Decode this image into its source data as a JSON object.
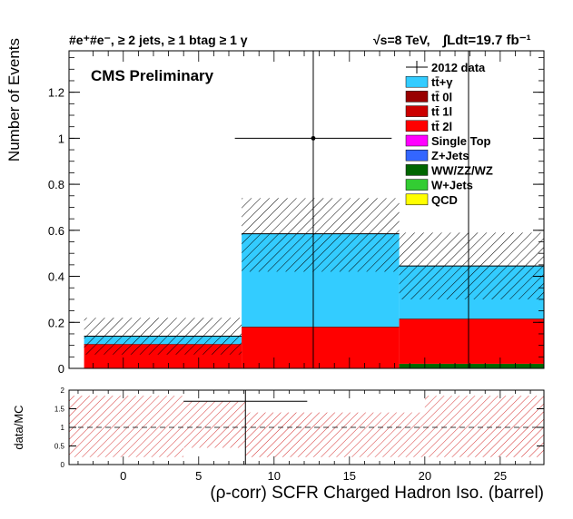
{
  "header": {
    "channel": "#e⁺#e⁻, ≥ 2 jets, ≥ 1 btag ≥ 1 γ",
    "energy": "√s=8 TeV,",
    "lumi": "∫Ldt=19.7 fb⁻¹",
    "experiment": "CMS Preliminary"
  },
  "colors": {
    "ttgamma": "#33ccff",
    "tt0l": "#990000",
    "tt1l": "#cc0000",
    "tt2l": "#ff0000",
    "single_top": "#ff00ff",
    "zjets": "#3366ff",
    "diboson": "#006600",
    "wjets": "#33cc33",
    "qcd": "#ffff00",
    "ratio_band": "#cc0000"
  },
  "chart_data": [
    {
      "type": "bar",
      "stacked": true,
      "ylabel": "Number of Events",
      "xlabel": "",
      "xlim": [
        -3.6,
        27.9
      ],
      "ylim": [
        0,
        1.38
      ],
      "xticks": [],
      "yticks": [
        "0",
        "0.2",
        "0.4",
        "0.6",
        "0.8",
        "1",
        "1.2"
      ],
      "bin_edges": [
        -2.6,
        7.85,
        18.3,
        28.75
      ],
      "series": [
        {
          "name": "tt̄+γ",
          "color": "#33ccff",
          "values": [
            0.035,
            0.405,
            0.23
          ]
        },
        {
          "name": "tt̄ 0l",
          "color": "#990000",
          "values": [
            0,
            0,
            0
          ]
        },
        {
          "name": "tt̄ 1l",
          "color": "#cc0000",
          "values": [
            0,
            0,
            0
          ]
        },
        {
          "name": "tt̄ 2l",
          "color": "#ff0000",
          "values": [
            0.105,
            0.18,
            0.195
          ]
        },
        {
          "name": "Single Top",
          "color": "#ff00ff",
          "values": [
            0,
            0,
            0
          ]
        },
        {
          "name": "Z+Jets",
          "color": "#3366ff",
          "values": [
            0,
            0,
            0
          ]
        },
        {
          "name": "WW/ZZ/WZ",
          "color": "#006600",
          "values": [
            0,
            0,
            0.02
          ]
        },
        {
          "name": "W+Jets",
          "color": "#33cc33",
          "values": [
            0,
            0,
            0
          ]
        },
        {
          "name": "QCD",
          "color": "#ffff00",
          "values": [
            0,
            0,
            0
          ]
        }
      ],
      "uncertainty": {
        "lower": [
          0.06,
          0.42,
          0.3
        ],
        "upper": [
          0.22,
          0.74,
          0.59
        ]
      },
      "data": {
        "name": "2012 data",
        "x": [
          12.6,
          22.9
        ],
        "y": [
          1,
          0
        ],
        "xerr": [
          5.2,
          5.2
        ],
        "yerr_up": [
          1.35,
          1.38
        ],
        "yerr_down": [
          1.0,
          0.0
        ]
      },
      "legend": {
        "position": "top-right",
        "entries": [
          "2012 data",
          "tt̄+γ",
          "tt̄ 0l",
          "tt̄ 1l",
          "tt̄ 2l",
          "Single Top",
          "Z+Jets",
          "WW/ZZ/WZ",
          "W+Jets",
          "QCD"
        ]
      }
    },
    {
      "type": "scatter",
      "ylabel": "data/MC",
      "xlabel": "(ρ-corr) SCFR Charged Hadron Iso. (barrel)",
      "xlim": [
        -3.6,
        27.9
      ],
      "ylim": [
        0,
        2
      ],
      "xticks": [
        "0",
        "5",
        "10",
        "15",
        "20",
        "25"
      ],
      "yticks": [
        "0",
        "0.5",
        "1",
        "1.5",
        "2"
      ],
      "reference_line": 1,
      "ratio_points": {
        "x": [
          8.1
        ],
        "y": [
          1.7
        ],
        "xerr": [
          4.1
        ],
        "yerr_up": [
          0.3
        ],
        "yerr_down": [
          1.7
        ]
      },
      "band": {
        "bin_edges": [
          -3.6,
          4.0,
          8.1,
          20.0,
          27.9
        ],
        "lower": [
          0.2,
          0.45,
          0.2,
          0.2
        ],
        "upper": [
          1.85,
          1.7,
          1.4,
          1.85
        ]
      }
    }
  ]
}
